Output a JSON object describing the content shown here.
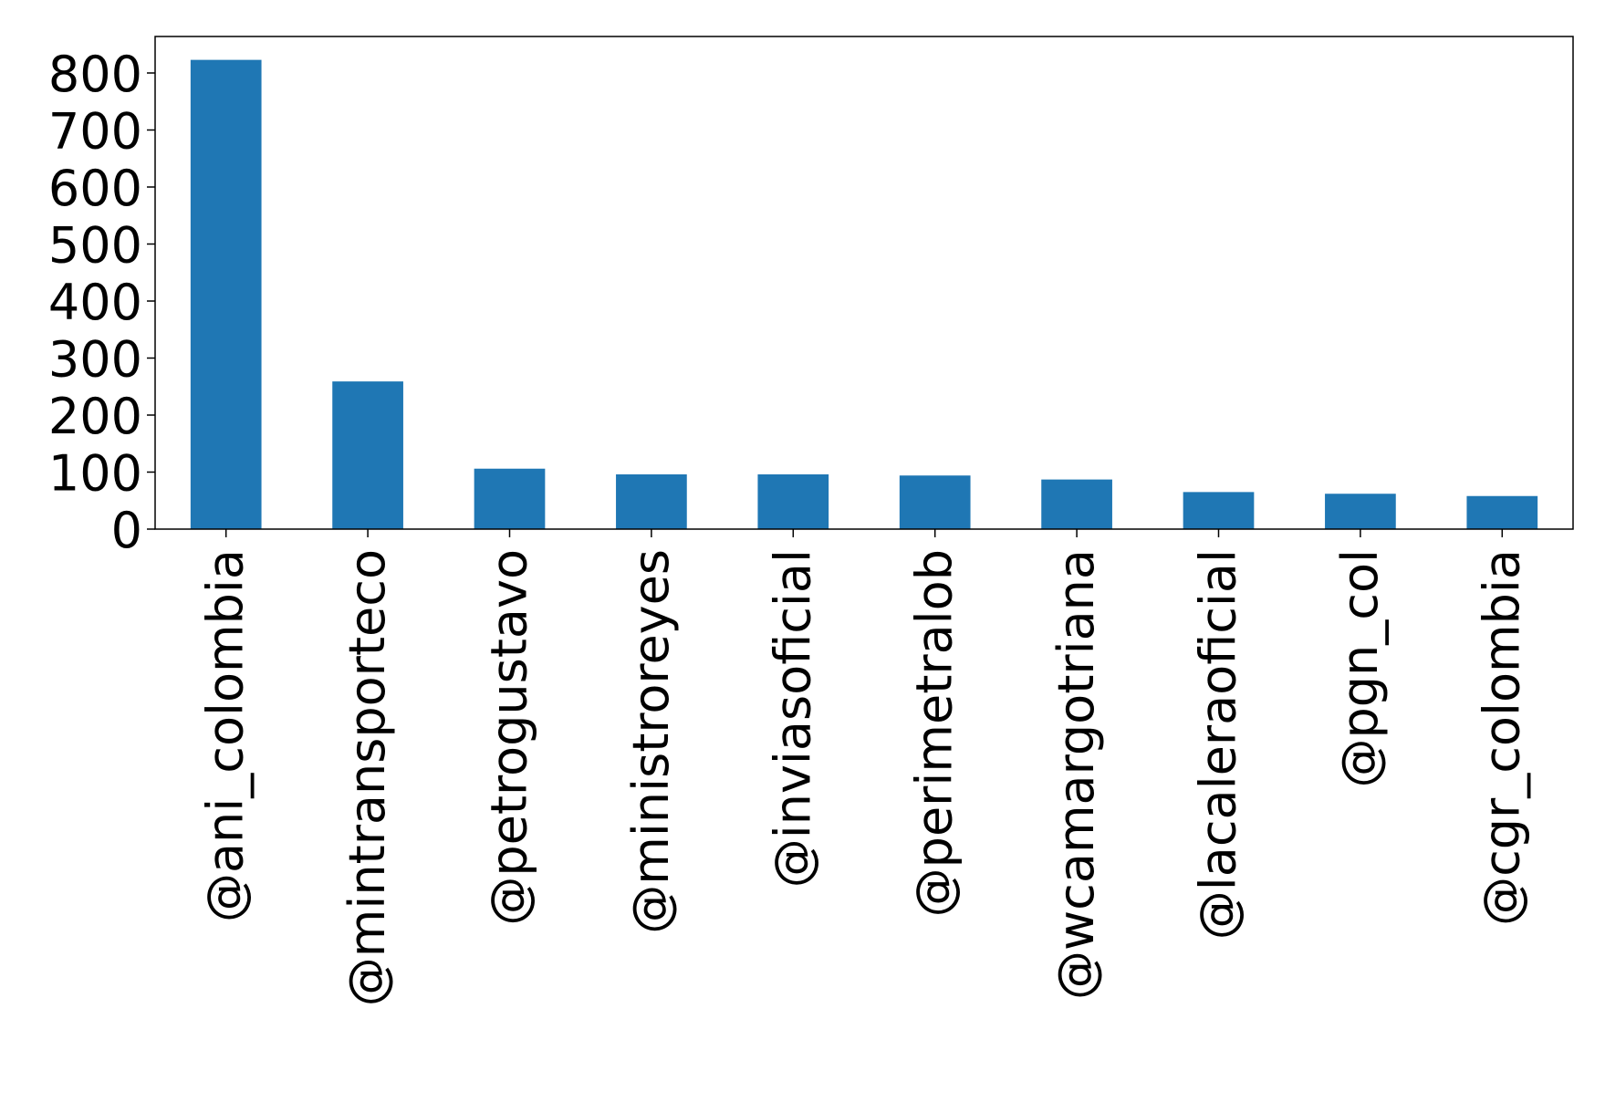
{
  "chart_data": {
    "type": "bar",
    "title": "",
    "xlabel": "",
    "ylabel": "",
    "categories": [
      "@ani_colombia",
      "@mintransporteco",
      "@petrogustavo",
      "@ministroreyes",
      "@inviasoficial",
      "@perimetralob",
      "@wcamargotriana",
      "@lacaleraoficial",
      "@pgn_col",
      "@cgr_colombia"
    ],
    "values": [
      823,
      259,
      106,
      96,
      96,
      94,
      87,
      65,
      62,
      58
    ],
    "ylim": [
      0,
      864
    ],
    "yticks": [
      0,
      100,
      200,
      300,
      400,
      500,
      600,
      700,
      800
    ],
    "bar_color": "#1f77b4",
    "grid": false,
    "legend": false
  }
}
